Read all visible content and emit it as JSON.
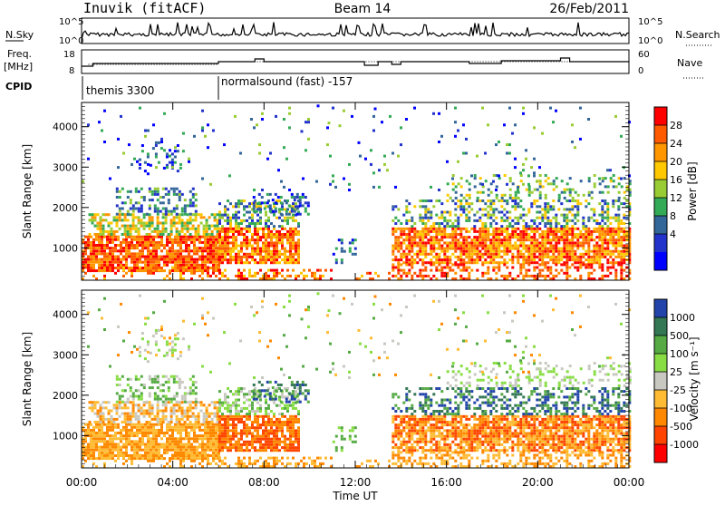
{
  "header": {
    "station": "Inuvik (fitACF)",
    "beam": "Beam 14",
    "date": "26/Feb/2011"
  },
  "top_panels": {
    "nsky_label": "N.Sky",
    "nsearch_label": "N.Search",
    "freq_label_1": "Freq.",
    "freq_label_2": "[MHz]",
    "nave_label": "Nave",
    "cpid_label": "CPID",
    "noise_ticks_left": [
      "10^5",
      "10^0"
    ],
    "noise_ticks_right": [
      "10^5",
      "10^0"
    ],
    "freq_ticks": [
      "18",
      "8"
    ],
    "nave_ticks": [
      "60",
      "0"
    ],
    "cpid_segments": [
      {
        "label": "themis 3300",
        "start_hour": 0
      },
      {
        "label": "normalsound (fast) -157",
        "start_hour": 6
      }
    ]
  },
  "chart_data": [
    {
      "type": "heatmap",
      "name": "power-panel",
      "ylabel": "Slant Range [km]",
      "yticks": [
        "4000",
        "3000",
        "2000",
        "1000"
      ],
      "ytick_values": [
        4000,
        3000,
        2000,
        1000
      ],
      "ylim": [
        200,
        4600
      ],
      "xlim": [
        0,
        24
      ],
      "colorbar_label": "Power [dB]",
      "colorbar_ticks": [
        "28",
        "24",
        "20",
        "16",
        "12",
        "8",
        "4"
      ],
      "colorbar_colors": [
        "#ff0000",
        "#ff5a00",
        "#ff9600",
        "#ffc800",
        "#99cc33",
        "#33aa55",
        "#336699",
        "#2233cc",
        "#0000ff"
      ]
    },
    {
      "type": "heatmap",
      "name": "velocity-panel",
      "ylabel": "Slant Range [km]",
      "yticks": [
        "4000",
        "3000",
        "2000",
        "1000"
      ],
      "ytick_values": [
        4000,
        3000,
        2000,
        1000
      ],
      "ylim": [
        200,
        4600
      ],
      "xlim": [
        0,
        24
      ],
      "xlabel": "Time UT",
      "xticks": [
        "00:00",
        "04:00",
        "08:00",
        "12:00",
        "16:00",
        "20:00",
        "00:00"
      ],
      "xtick_values": [
        0,
        4,
        8,
        12,
        16,
        20,
        24
      ],
      "colorbar_label": "Velocity [m s⁻¹]",
      "colorbar_ticks": [
        "1000",
        "500",
        "100",
        "25",
        "-25",
        "-100",
        "-500",
        "-1000"
      ],
      "colorbar_colors": [
        "#2244aa",
        "#337755",
        "#55aa44",
        "#88dd44",
        "#c8c8c0",
        "#ffbb33",
        "#ff8800",
        "#ff4400",
        "#ff0000"
      ]
    }
  ]
}
